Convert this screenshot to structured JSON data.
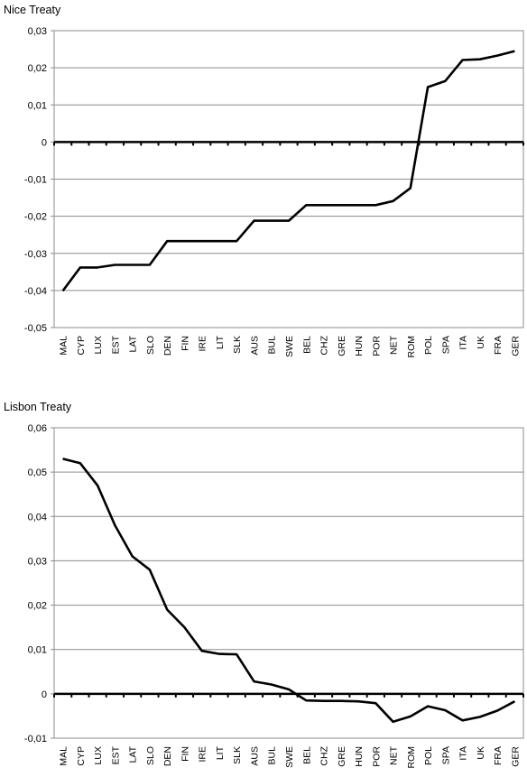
{
  "chart_data": [
    {
      "type": "line",
      "title": "Nice Treaty",
      "xlabel": "",
      "ylabel": "",
      "ylim": [
        -0.05,
        0.03
      ],
      "ytick_values": [
        -0.05,
        -0.04,
        -0.03,
        -0.02,
        -0.01,
        0,
        0.01,
        0.02,
        0.03
      ],
      "ytick_labels": [
        "-0,05",
        "-0,04",
        "-0,03",
        "-0,02",
        "-0,01",
        "0",
        "0,01",
        "0,02",
        "0,03"
      ],
      "grid": true,
      "legend": "none",
      "line_color": "#000000",
      "categories": [
        "MAL",
        "CYP",
        "LUX",
        "EST",
        "LAT",
        "SLO",
        "DEN",
        "FIN",
        "IRE",
        "LIT",
        "SLK",
        "AUS",
        "BUL",
        "SWE",
        "BEL",
        "CHZ",
        "GRE",
        "HUN",
        "POR",
        "NET",
        "ROM",
        "POL",
        "SPA",
        "ITA",
        "UK",
        "FRA",
        "GER"
      ],
      "series": [
        {
          "values": [
            -0.0401,
            -0.0338,
            -0.0338,
            -0.0331,
            -0.0331,
            -0.0331,
            -0.0267,
            -0.0267,
            -0.0267,
            -0.0267,
            -0.0267,
            -0.0212,
            -0.0212,
            -0.0212,
            -0.017,
            -0.017,
            -0.017,
            -0.017,
            -0.017,
            -0.0159,
            -0.0124,
            0.0148,
            0.0164,
            0.0221,
            0.0223,
            0.0233,
            0.0245
          ]
        }
      ]
    },
    {
      "type": "line",
      "title": "Lisbon Treaty",
      "xlabel": "",
      "ylabel": "",
      "ylim": [
        -0.01,
        0.06
      ],
      "ytick_values": [
        -0.01,
        0,
        0.01,
        0.02,
        0.03,
        0.04,
        0.05,
        0.06
      ],
      "ytick_labels": [
        "-0,01",
        "0",
        "0,01",
        "0,02",
        "0,03",
        "0,04",
        "0,05",
        "0,06"
      ],
      "grid": true,
      "legend": "none",
      "line_color": "#000000",
      "categories": [
        "MAL",
        "CYP",
        "LUX",
        "EST",
        "LAT",
        "SLO",
        "DEN",
        "FIN",
        "IRE",
        "LIT",
        "SLK",
        "AUS",
        "BUL",
        "SWE",
        "BEL",
        "CHZ",
        "GRE",
        "HUN",
        "POR",
        "NET",
        "ROM",
        "POL",
        "SPA",
        "ITA",
        "UK",
        "FRA",
        "GER"
      ],
      "series": [
        {
          "values": [
            0.053,
            0.052,
            0.047,
            0.038,
            0.031,
            0.028,
            0.019,
            0.015,
            0.0097,
            0.009,
            0.0089,
            0.0028,
            0.0021,
            0.001,
            -0.0015,
            -0.0016,
            -0.0016,
            -0.0017,
            -0.0021,
            -0.0063,
            -0.0051,
            -0.0028,
            -0.0037,
            -0.006,
            -0.0052,
            -0.0038,
            -0.0017
          ]
        }
      ]
    }
  ]
}
